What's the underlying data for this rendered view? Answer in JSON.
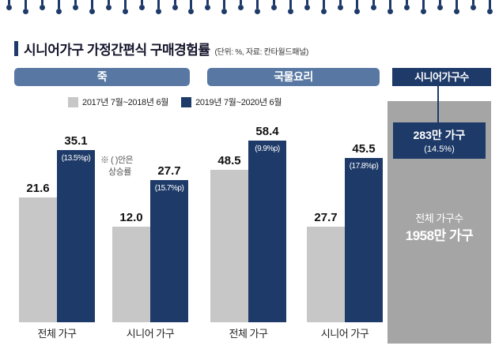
{
  "title": {
    "text": "시니어가구 가정간편식 구매경험률",
    "unit_note": "(단위: %, 자료: 칸타월드패널)"
  },
  "legend": [
    {
      "label": "2017년 7월~2018년 6월",
      "color": "#c7c7c7"
    },
    {
      "label": "2019년 7월~2020년 6월",
      "color": "#1e3a68"
    }
  ],
  "note": {
    "line1": "※ ( )안은",
    "line2": "상승률"
  },
  "colors": {
    "navy": "#1e3a68",
    "steel_blue": "#5878a3",
    "bar_gray": "#c7c7c7",
    "panel_gray": "#a5a5a5"
  },
  "chart_data": {
    "type": "bar",
    "unit": "%",
    "legend_position": "top",
    "groups": [
      {
        "header": "죽",
        "pairs": [
          {
            "category": "전체 가구",
            "old": {
              "value": 21.6,
              "label": "21.6"
            },
            "new": {
              "value": 35.1,
              "label": "35.1",
              "increase": "(13.5%p)"
            }
          },
          {
            "category": "시니어 가구",
            "old": {
              "value": 12.0,
              "label": "12.0"
            },
            "new": {
              "value": 27.7,
              "label": "27.7",
              "increase": "(15.7%p)"
            }
          }
        ]
      },
      {
        "header": "국물요리",
        "pairs": [
          {
            "category": "전체 가구",
            "old": {
              "value": 48.5,
              "label": "48.5"
            },
            "new": {
              "value": 58.4,
              "label": "58.4",
              "increase": "(9.9%p)"
            }
          },
          {
            "category": "시니어 가구",
            "old": {
              "value": 27.7,
              "label": "27.7"
            },
            "new": {
              "value": 45.5,
              "label": "45.5",
              "increase": "(17.8%p)"
            }
          }
        ]
      }
    ]
  },
  "panel": {
    "header": "시니어가구수",
    "senior_value": "283만 가구",
    "senior_pct": "(14.5%)",
    "total_label": "전체 가구수",
    "total_value": "1958만 가구"
  }
}
